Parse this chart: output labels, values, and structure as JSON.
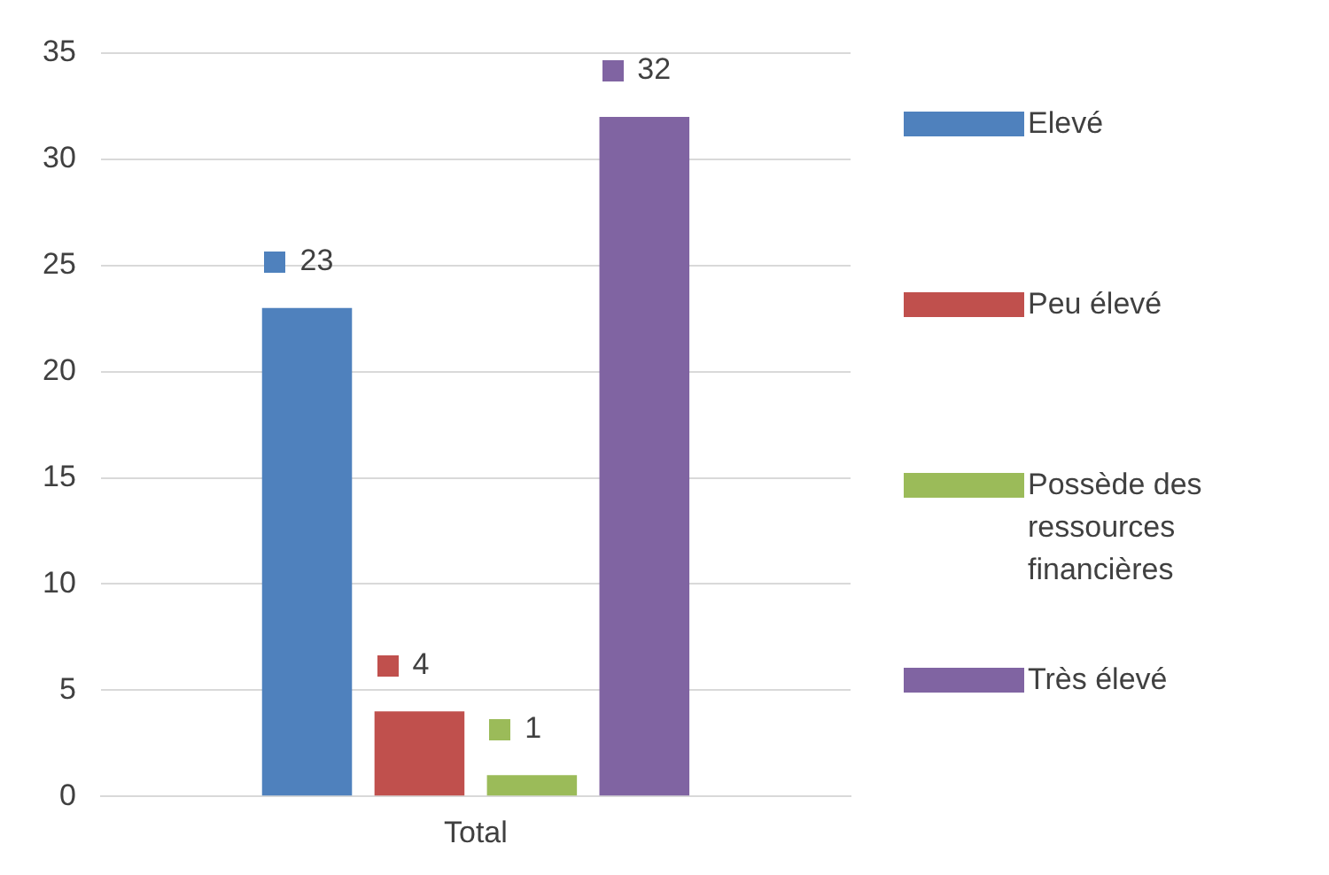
{
  "chart_data": {
    "type": "bar",
    "categories": [
      "Total"
    ],
    "series": [
      {
        "name": "Elevé",
        "color": "#4f81bd",
        "values": [
          23
        ]
      },
      {
        "name": "Peu élevé",
        "color": "#c0504d",
        "values": [
          4
        ]
      },
      {
        "name": "Possède des ressources financières",
        "color": "#9bbb59",
        "values": [
          1
        ]
      },
      {
        "name": "Très élevé",
        "color": "#8064a2",
        "values": [
          32
        ]
      }
    ],
    "ylim": [
      0,
      35
    ],
    "yticks": [
      0,
      5,
      10,
      15,
      20,
      25,
      30,
      35
    ],
    "grid": "y",
    "legend": "right",
    "data_labels": true
  }
}
